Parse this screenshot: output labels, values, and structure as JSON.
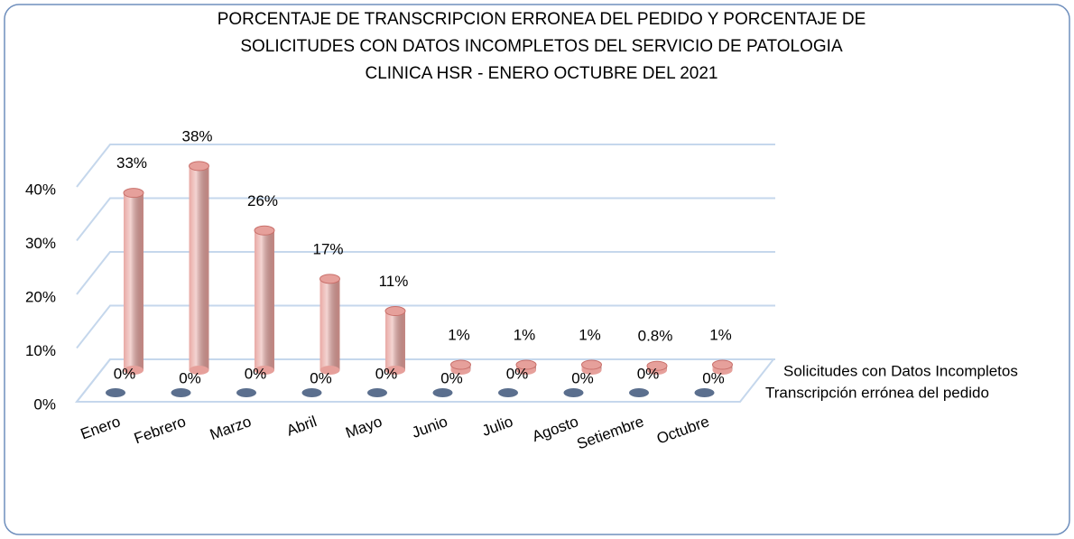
{
  "chart_data": {
    "type": "bar3d",
    "title": [
      "PORCENTAJE DE TRANSCRIPCION ERRONEA DEL PEDIDO Y  PORCENTAJE DE",
      "SOLICITUDES CON DATOS INCOMPLETOS DEL SERVICIO DE PATOLOGIA",
      "CLINICA HSR - ENERO OCTUBRE DEL 2021"
    ],
    "categories": [
      "Enero",
      "Febrero",
      "Marzo",
      "Abril",
      "Mayo",
      "Junio",
      "Julio",
      "Agosto",
      "Setiembre",
      "Octubre"
    ],
    "series": [
      {
        "name": "Transcripción errónea del pedido",
        "color": "#5b6f8e",
        "values": [
          0,
          0,
          0,
          0,
          0,
          0,
          0,
          0,
          0,
          0
        ],
        "value_labels": [
          "0%",
          "0%",
          "0%",
          "0%",
          "0%",
          "0%",
          "0%",
          "0%",
          "0%",
          "0%"
        ]
      },
      {
        "name": "Solicitudes con Datos Incompletos",
        "color": "#e6a09b",
        "values": [
          33,
          38,
          26,
          17,
          11,
          1,
          1,
          1,
          0.8,
          1
        ],
        "value_labels": [
          "33%",
          "38%",
          "26%",
          "17%",
          "11%",
          "1%",
          "1%",
          "1%",
          "0.8%",
          "1%"
        ]
      }
    ],
    "ylim": [
      0,
      40
    ],
    "yticks": [
      {
        "value": 0,
        "label": "0%"
      },
      {
        "value": 10,
        "label": "10%"
      },
      {
        "value": 20,
        "label": "20%"
      },
      {
        "value": 30,
        "label": "30%"
      },
      {
        "value": 40,
        "label": "40%"
      }
    ],
    "grid": true,
    "legend": "right"
  }
}
